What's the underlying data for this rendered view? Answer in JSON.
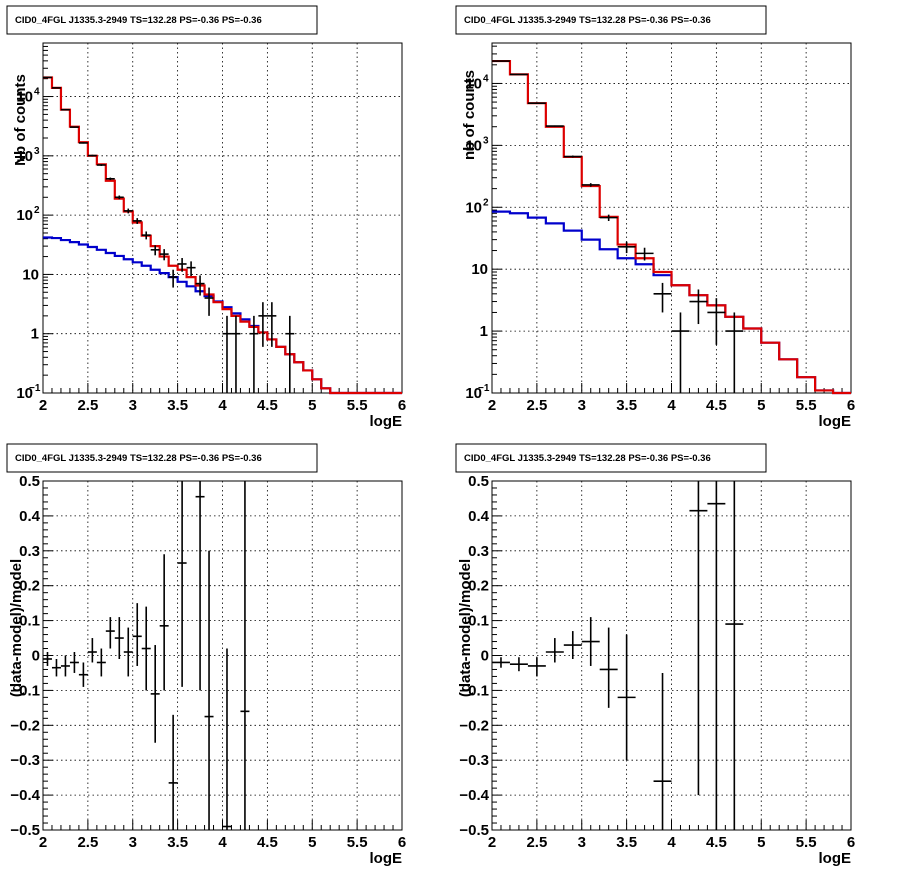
{
  "chart_data": [
    {
      "type": "histogram",
      "title": "CID0_4FGL J1335.3-2949 TS=132.28 PS=-0.36 PS=-0.36",
      "xlabel": "logE",
      "ylabel": "Nb of counts",
      "xlim": [
        2,
        6
      ],
      "ylim": [
        0.1,
        80000
      ],
      "yscale": "log",
      "grid": true,
      "x_ticks": [
        "2",
        "2.5",
        "3",
        "3.5",
        "4",
        "4.5",
        "5",
        "5.5",
        "6"
      ],
      "y_ticks": [
        {
          "value": 0.1,
          "label": "10",
          "sup": "−1"
        },
        {
          "value": 1,
          "label": "1",
          "sup": ""
        },
        {
          "value": 10,
          "label": "10",
          "sup": ""
        },
        {
          "value": 100,
          "label": "10",
          "sup": "2"
        },
        {
          "value": 1000,
          "label": "10",
          "sup": "3"
        },
        {
          "value": 10000,
          "label": "10",
          "sup": "4"
        }
      ],
      "bin_edges": [
        2.0,
        2.1,
        2.2,
        2.3,
        2.4,
        2.5,
        2.6,
        2.7,
        2.8,
        2.9,
        3.0,
        3.1,
        3.2,
        3.3,
        3.4,
        3.5,
        3.6,
        3.7,
        3.8,
        3.9,
        4.0,
        4.1,
        4.2,
        4.3,
        4.4,
        4.5,
        4.6,
        4.7,
        4.8,
        4.9,
        5.0,
        5.1,
        5.2,
        5.3,
        5.4,
        5.5,
        5.6,
        5.7,
        5.8,
        5.9,
        6.0
      ],
      "series": [
        {
          "kind": "step",
          "color": "#0000cc",
          "values": [
            42,
            41,
            38,
            35,
            32,
            29,
            26,
            23,
            20.5,
            18,
            16,
            14,
            12,
            10.5,
            9,
            7.5,
            6.3,
            5.2,
            4.3,
            3.5,
            2.8,
            2.2,
            1.75,
            1.35,
            1.05,
            0.8,
            0.6,
            0.45,
            0.33,
            0.24,
            0.17,
            0.12,
            0.1,
            0.1,
            0.1,
            0.1,
            0.1,
            0.1,
            0.1,
            0.1
          ]
        },
        {
          "kind": "step",
          "color": "#dd0000",
          "values": [
            21000,
            14000,
            6000,
            3100,
            1700,
            1000,
            720,
            380,
            190,
            115,
            75,
            45,
            30,
            20,
            14,
            12,
            9,
            6.5,
            4.6,
            3.4,
            2.6,
            2.0,
            1.6,
            1.3,
            1.05,
            0.8,
            0.6,
            0.45,
            0.33,
            0.24,
            0.17,
            0.12,
            0.1,
            0.1,
            0.1,
            0.1,
            0.1,
            0.1,
            0.1,
            0.1
          ]
        },
        {
          "kind": "points",
          "color": "#000000",
          "points": [
            {
              "x": 2.05,
              "y": 21000,
              "lo": 20850,
              "hi": 21150
            },
            {
              "x": 2.15,
              "y": 14000,
              "lo": 13880,
              "hi": 14120
            },
            {
              "x": 2.25,
              "y": 6000,
              "lo": 5920,
              "hi": 6080
            },
            {
              "x": 2.35,
              "y": 3050,
              "lo": 2995,
              "hi": 3105
            },
            {
              "x": 2.45,
              "y": 1650,
              "lo": 1610,
              "hi": 1690
            },
            {
              "x": 2.55,
              "y": 1010,
              "lo": 978,
              "hi": 1042
            },
            {
              "x": 2.65,
              "y": 700,
              "lo": 674,
              "hi": 726
            },
            {
              "x": 2.75,
              "y": 410,
              "lo": 390,
              "hi": 430
            },
            {
              "x": 2.85,
              "y": 200,
              "lo": 186,
              "hi": 214
            },
            {
              "x": 2.95,
              "y": 118,
              "lo": 107,
              "hi": 129
            },
            {
              "x": 3.05,
              "y": 80,
              "lo": 71,
              "hi": 89
            },
            {
              "x": 3.15,
              "y": 46,
              "lo": 39,
              "hi": 53
            },
            {
              "x": 3.25,
              "y": 26,
              "lo": 21,
              "hi": 31
            },
            {
              "x": 3.35,
              "y": 22,
              "lo": 17.3,
              "hi": 26.7
            },
            {
              "x": 3.45,
              "y": 9,
              "lo": 6,
              "hi": 12
            },
            {
              "x": 3.55,
              "y": 15,
              "lo": 11.1,
              "hi": 18.9
            },
            {
              "x": 3.65,
              "y": 13,
              "lo": 9.4,
              "hi": 16.6
            },
            {
              "x": 3.75,
              "y": 7,
              "lo": 4.4,
              "hi": 9.6
            },
            {
              "x": 3.85,
              "y": 4,
              "lo": 2,
              "hi": 6
            },
            {
              "x": 4.05,
              "y": 1,
              "lo": 0.08,
              "hi": 2
            },
            {
              "x": 4.15,
              "y": 1,
              "lo": 0.08,
              "hi": 2
            },
            {
              "x": 4.35,
              "y": 1,
              "lo": 0.08,
              "hi": 2
            },
            {
              "x": 4.45,
              "y": 2,
              "lo": 0.6,
              "hi": 3.4
            },
            {
              "x": 4.55,
              "y": 2,
              "lo": 0.6,
              "hi": 3.4
            },
            {
              "x": 4.75,
              "y": 1,
              "lo": 0.08,
              "hi": 2
            }
          ]
        }
      ]
    },
    {
      "type": "histogram",
      "title": "CID0_4FGL J1335.3-2949 TS=132.28 PS=-0.36 PS=-0.36",
      "xlabel": "logE",
      "ylabel": "nb of counts",
      "xlim": [
        2,
        6
      ],
      "ylim": [
        0.1,
        45000
      ],
      "yscale": "log",
      "grid": true,
      "x_ticks": [
        "2",
        "2.5",
        "3",
        "3.5",
        "4",
        "4.5",
        "5",
        "5.5",
        "6"
      ],
      "y_ticks": [
        {
          "value": 0.1,
          "label": "10",
          "sup": "−1"
        },
        {
          "value": 1,
          "label": "1",
          "sup": ""
        },
        {
          "value": 10,
          "label": "10",
          "sup": ""
        },
        {
          "value": 100,
          "label": "10",
          "sup": "2"
        },
        {
          "value": 1000,
          "label": "10",
          "sup": "3"
        },
        {
          "value": 10000,
          "label": "10",
          "sup": "4"
        }
      ],
      "bin_edges": [
        2.0,
        2.2,
        2.4,
        2.6,
        2.8,
        3.0,
        3.2,
        3.4,
        3.6,
        3.8,
        4.0,
        4.2,
        4.4,
        4.6,
        4.8,
        5.0,
        5.2,
        5.4,
        5.6,
        5.8,
        6.0
      ],
      "series": [
        {
          "kind": "step",
          "color": "#0000cc",
          "values": [
            85,
            80,
            68,
            55,
            42,
            30,
            21,
            15,
            12,
            8,
            5.5,
            3.8,
            2.6,
            1.7,
            1.1,
            0.65,
            0.35,
            0.18,
            0.11,
            0.1
          ]
        },
        {
          "kind": "step",
          "color": "#dd0000",
          "values": [
            23000,
            14000,
            4800,
            2000,
            650,
            220,
            70,
            25,
            15,
            9,
            5.5,
            3.8,
            2.6,
            1.7,
            1.1,
            0.65,
            0.35,
            0.18,
            0.11,
            0.1
          ]
        },
        {
          "kind": "points",
          "color": "#000000",
          "points": [
            {
              "x": 2.1,
              "y": 23000,
              "lo": 22850,
              "hi": 23150
            },
            {
              "x": 2.3,
              "y": 14000,
              "lo": 13880,
              "hi": 14120
            },
            {
              "x": 2.5,
              "y": 4800,
              "lo": 4730,
              "hi": 4870
            },
            {
              "x": 2.7,
              "y": 2050,
              "lo": 2005,
              "hi": 2095
            },
            {
              "x": 2.9,
              "y": 660,
              "lo": 634,
              "hi": 686
            },
            {
              "x": 3.1,
              "y": 230,
              "lo": 215,
              "hi": 245
            },
            {
              "x": 3.3,
              "y": 68,
              "lo": 60,
              "hi": 76
            },
            {
              "x": 3.5,
              "y": 23,
              "lo": 18.2,
              "hi": 27.8
            },
            {
              "x": 3.7,
              "y": 18,
              "lo": 13.8,
              "hi": 22.2
            },
            {
              "x": 3.9,
              "y": 4,
              "lo": 2,
              "hi": 6
            },
            {
              "x": 4.1,
              "y": 1,
              "lo": 0.08,
              "hi": 2
            },
            {
              "x": 4.3,
              "y": 3,
              "lo": 1.3,
              "hi": 4.7
            },
            {
              "x": 4.5,
              "y": 2,
              "lo": 0.6,
              "hi": 3.4
            },
            {
              "x": 4.7,
              "y": 1,
              "lo": 0.08,
              "hi": 2
            }
          ]
        }
      ]
    },
    {
      "type": "scatter",
      "title": "CID0_4FGL J1335.3-2949 TS=132.28 PS=-0.36 PS=-0.36",
      "xlabel": "logE",
      "ylabel": "(data-model)/model",
      "xlim": [
        2,
        6
      ],
      "ylim": [
        -0.5,
        0.5
      ],
      "yscale": "linear",
      "grid": true,
      "x_ticks": [
        "2",
        "2.5",
        "3",
        "3.5",
        "4",
        "4.5",
        "5",
        "5.5",
        "6"
      ],
      "y_ticks": [
        "−0.5",
        "−0.4",
        "−0.3",
        "−0.2",
        "−0.1",
        "0",
        "0.1",
        "0.2",
        "0.3",
        "0.4",
        "0.5"
      ],
      "series": [
        {
          "kind": "points",
          "color": "#000000",
          "halfwidth": 0.05,
          "points": [
            {
              "x": 2.05,
              "y": -0.01,
              "lo": -0.03,
              "hi": 0.01
            },
            {
              "x": 2.15,
              "y": -0.035,
              "lo": -0.06,
              "hi": -0.01
            },
            {
              "x": 2.25,
              "y": -0.03,
              "lo": -0.06,
              "hi": 0.0
            },
            {
              "x": 2.35,
              "y": -0.02,
              "lo": -0.05,
              "hi": 0.01
            },
            {
              "x": 2.45,
              "y": -0.055,
              "lo": -0.09,
              "hi": -0.02
            },
            {
              "x": 2.55,
              "y": 0.01,
              "lo": -0.02,
              "hi": 0.05
            },
            {
              "x": 2.65,
              "y": -0.02,
              "lo": -0.06,
              "hi": 0.02
            },
            {
              "x": 2.75,
              "y": 0.07,
              "lo": 0.02,
              "hi": 0.11
            },
            {
              "x": 2.85,
              "y": 0.05,
              "lo": -0.01,
              "hi": 0.11
            },
            {
              "x": 2.95,
              "y": 0.01,
              "lo": -0.06,
              "hi": 0.08
            },
            {
              "x": 3.05,
              "y": 0.055,
              "lo": -0.03,
              "hi": 0.15
            },
            {
              "x": 3.15,
              "y": 0.02,
              "lo": -0.1,
              "hi": 0.14
            },
            {
              "x": 3.25,
              "y": -0.11,
              "lo": -0.25,
              "hi": 0.03
            },
            {
              "x": 3.35,
              "y": 0.085,
              "lo": -0.1,
              "hi": 0.29
            },
            {
              "x": 3.45,
              "y": -0.365,
              "lo": -0.5,
              "hi": -0.17
            },
            {
              "x": 3.55,
              "y": 0.265,
              "lo": -0.09,
              "hi": 0.5
            },
            {
              "x": 3.75,
              "y": 0.455,
              "lo": -0.1,
              "hi": 0.5
            },
            {
              "x": 3.85,
              "y": -0.175,
              "lo": -0.5,
              "hi": 0.3
            },
            {
              "x": 4.05,
              "y": -0.49,
              "lo": -0.5,
              "hi": 0.02
            },
            {
              "x": 4.25,
              "y": -0.16,
              "lo": -0.5,
              "hi": 0.5
            }
          ]
        }
      ]
    },
    {
      "type": "scatter",
      "title": "CID0_4FGL J1335.3-2949 TS=132.28 PS=-0.36 PS=-0.36",
      "xlabel": "logE",
      "ylabel": "(data-model)/model",
      "xlim": [
        2,
        6
      ],
      "ylim": [
        -0.5,
        0.5
      ],
      "yscale": "linear",
      "grid": true,
      "x_ticks": [
        "2",
        "2.5",
        "3",
        "3.5",
        "4",
        "4.5",
        "5",
        "5.5",
        "6"
      ],
      "y_ticks": [
        "−0.5",
        "−0.4",
        "−0.3",
        "−0.2",
        "−0.1",
        "0",
        "0.1",
        "0.2",
        "0.3",
        "0.4",
        "0.5"
      ],
      "series": [
        {
          "kind": "points",
          "color": "#000000",
          "halfwidth": 0.1,
          "points": [
            {
              "x": 2.1,
              "y": -0.02,
              "lo": -0.035,
              "hi": -0.005
            },
            {
              "x": 2.3,
              "y": -0.025,
              "lo": -0.045,
              "hi": -0.005
            },
            {
              "x": 2.5,
              "y": -0.03,
              "lo": -0.06,
              "hi": -0.005
            },
            {
              "x": 2.7,
              "y": 0.01,
              "lo": -0.02,
              "hi": 0.05
            },
            {
              "x": 2.9,
              "y": 0.03,
              "lo": -0.01,
              "hi": 0.07
            },
            {
              "x": 3.1,
              "y": 0.04,
              "lo": -0.03,
              "hi": 0.11
            },
            {
              "x": 3.3,
              "y": -0.04,
              "lo": -0.15,
              "hi": 0.08
            },
            {
              "x": 3.5,
              "y": -0.12,
              "lo": -0.3,
              "hi": 0.06
            },
            {
              "x": 3.9,
              "y": -0.36,
              "lo": -0.5,
              "hi": -0.05
            },
            {
              "x": 4.3,
              "y": 0.415,
              "lo": -0.4,
              "hi": 0.5
            },
            {
              "x": 4.5,
              "y": 0.435,
              "lo": -0.5,
              "hi": 0.5
            },
            {
              "x": 4.7,
              "y": 0.09,
              "lo": -0.5,
              "hi": 0.5
            }
          ]
        }
      ]
    }
  ]
}
